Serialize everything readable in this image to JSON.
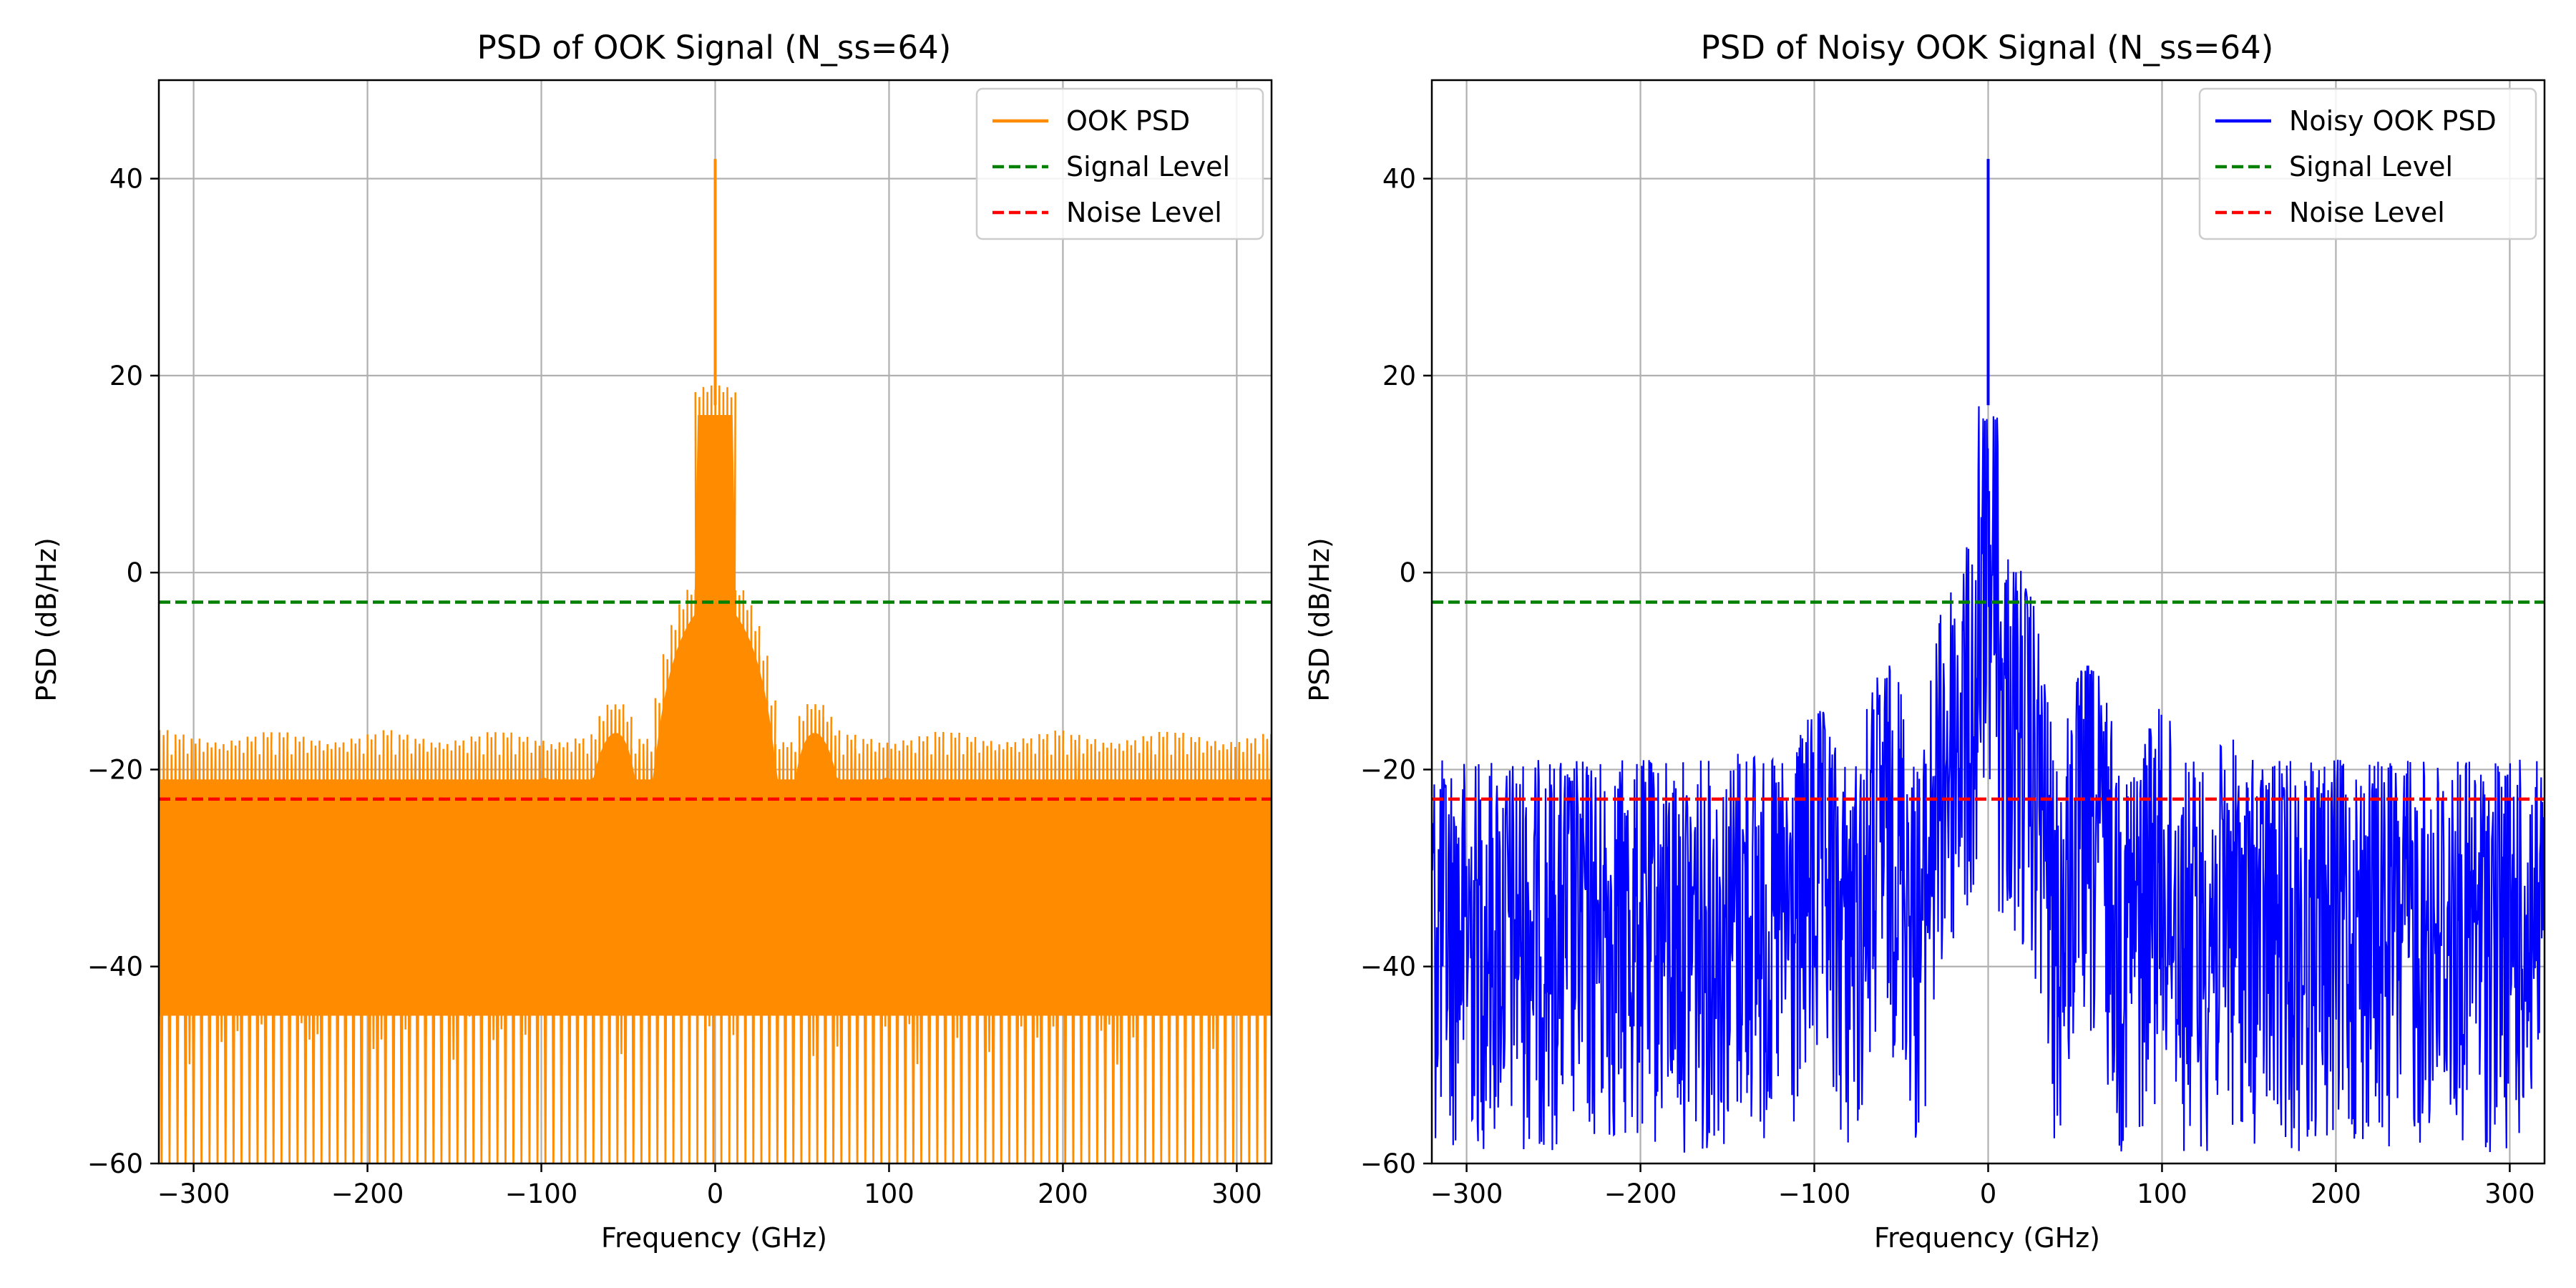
{
  "chart_data": [
    {
      "type": "line",
      "title": "PSD of OOK Signal (N_ss=64)",
      "xlabel": "Frequency (GHz)",
      "ylabel": "PSD (dB/Hz)",
      "xlim": [
        -320,
        320
      ],
      "ylim": [
        -60,
        50
      ],
      "xticks": [
        -300,
        -200,
        -100,
        0,
        100,
        200,
        300
      ],
      "yticks": [
        -60,
        -40,
        -20,
        0,
        20,
        40
      ],
      "grid": true,
      "legend_position": "top-right",
      "series": [
        {
          "name": "OOK PSD",
          "kind": "psd",
          "color": "#ff8c00",
          "noisy": false,
          "peak_db": 42,
          "mainlobe_db": 19,
          "envelope_at_edge_db": -16,
          "nulls_db": -60,
          "envelope_width_ghz": 40
        },
        {
          "name": "Signal Level",
          "kind": "hline",
          "y": -3,
          "color": "#008000",
          "dash": true
        },
        {
          "name": "Noise Level",
          "kind": "hline",
          "y": -23,
          "color": "#ff0000",
          "dash": true
        }
      ]
    },
    {
      "type": "line",
      "title": "PSD of Noisy OOK Signal (N_ss=64)",
      "xlabel": "Frequency (GHz)",
      "ylabel": "PSD (dB/Hz)",
      "xlim": [
        -320,
        320
      ],
      "ylim": [
        -60,
        50
      ],
      "xticks": [
        -300,
        -200,
        -100,
        0,
        100,
        200,
        300
      ],
      "yticks": [
        -60,
        -40,
        -20,
        0,
        20,
        40
      ],
      "grid": true,
      "legend_position": "top-right",
      "series": [
        {
          "name": "Noisy OOK PSD",
          "kind": "psd",
          "color": "#0000ff",
          "noisy": true,
          "peak_db": 42,
          "mainlobe_db": 19,
          "noise_floor_db": -23,
          "noise_top_db": -13,
          "noise_bottom_db": -58
        },
        {
          "name": "Signal Level",
          "kind": "hline",
          "y": -3,
          "color": "#008000",
          "dash": true
        },
        {
          "name": "Noise Level",
          "kind": "hline",
          "y": -23,
          "color": "#ff0000",
          "dash": true
        }
      ]
    }
  ]
}
